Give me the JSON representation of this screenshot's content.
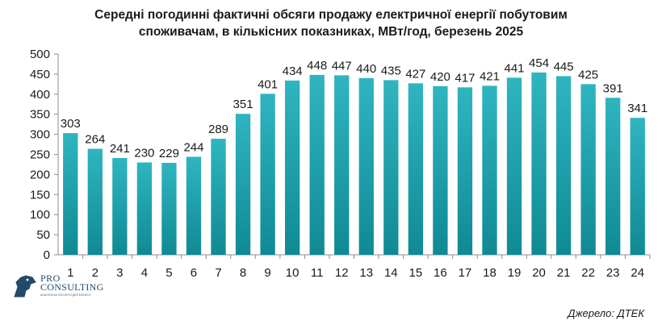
{
  "chart_data": {
    "type": "bar",
    "title_line1": "Середні погодинні фактичні обсяги продажу електричної енергії побутовим",
    "title_line2": "споживачам, в кількісних показниках, МВт/год, березень 2025",
    "categories": [
      "1",
      "2",
      "3",
      "4",
      "5",
      "6",
      "7",
      "8",
      "9",
      "10",
      "11",
      "12",
      "13",
      "14",
      "15",
      "16",
      "17",
      "18",
      "19",
      "20",
      "21",
      "22",
      "23",
      "24"
    ],
    "values": [
      303,
      264,
      241,
      230,
      229,
      244,
      289,
      351,
      401,
      434,
      448,
      447,
      440,
      435,
      427,
      420,
      417,
      421,
      441,
      454,
      445,
      425,
      391,
      341
    ],
    "ylim": [
      0,
      500
    ],
    "yticks": [
      0,
      50,
      100,
      150,
      200,
      250,
      300,
      350,
      400,
      450,
      500
    ],
    "grid": false,
    "legend": "none",
    "bar_color_top": "#2fb5c0",
    "bar_color_bottom": "#0f8a94"
  },
  "source": "Джерело: ДТЕК",
  "logo": {
    "line1": "PRO",
    "line2": "CONSULTING",
    "tagline": "АНАЛІТИЧНІ ПОСЛУГИ ДЛЯ БІЗНЕСУ"
  }
}
